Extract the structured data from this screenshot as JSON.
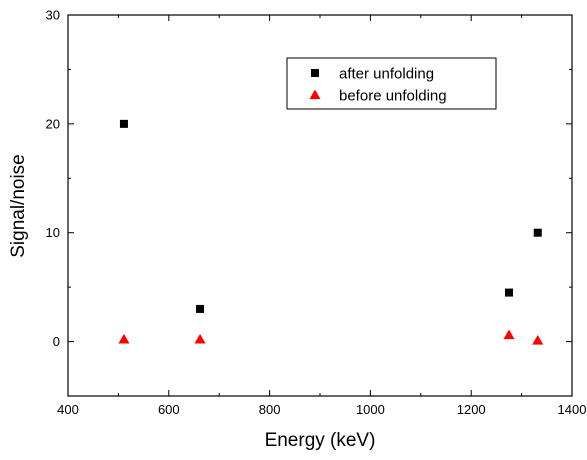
{
  "chart_data": {
    "type": "scatter",
    "title": "",
    "xlabel": "Energy (keV)",
    "ylabel": "Signal/noise",
    "xlim": [
      400,
      1400
    ],
    "ylim": [
      -5,
      30
    ],
    "xticks": [
      400,
      600,
      800,
      1000,
      1200,
      1400
    ],
    "yticks": [
      0,
      10,
      20,
      30
    ],
    "grid": false,
    "legend_position": "top-right",
    "series": [
      {
        "name": "after unfolding",
        "marker": "square",
        "color": "#000000",
        "x": [
          511,
          662,
          1275,
          1332
        ],
        "y": [
          20,
          3,
          4.5,
          10
        ]
      },
      {
        "name": "before unfolding",
        "marker": "triangle",
        "color": "#ff0000",
        "x": [
          511,
          662,
          1275,
          1332
        ],
        "y": [
          0.2,
          0.2,
          0.6,
          0.1
        ]
      }
    ]
  }
}
